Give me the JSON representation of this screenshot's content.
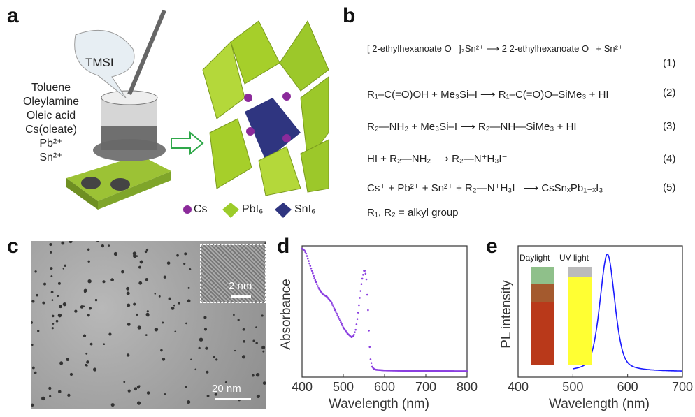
{
  "panels": {
    "a": "a",
    "b": "b",
    "c": "c",
    "d": "d",
    "e": "e"
  },
  "a": {
    "bubble": "TMSI",
    "reagents": [
      "Toluene",
      "Oleylamine",
      "Oleic acid",
      "Cs(oleate)",
      "Pb²⁺",
      "Sn²⁺"
    ],
    "legend": [
      "Cs",
      "PbI₆",
      "SnI₆"
    ],
    "colors": {
      "cs": "#8b2a9a",
      "pbi6": "#9ccc2a",
      "sni6": "#2f3580",
      "arrow": "#2fa84a"
    }
  },
  "b": {
    "equations": [
      {
        "text": "[ 2-ethylhexanoate O⁻ ]₂Sn²⁺ ⟶ 2 2-ethylhexanoate O⁻ + Sn²⁺",
        "number": "(1)"
      },
      {
        "text": "R₁–C(=O)OH + Me₃Si–I ⟶ R₁–C(=O)O–SiMe₃ + HI",
        "number": "(2)"
      },
      {
        "text": "R₂—NH₂ + Me₃Si–I ⟶ R₂—NH—SiMe₃ + HI",
        "number": "(3)"
      },
      {
        "text": "HI + R₂—NH₂ ⟶ R₂—N⁺H₃I⁻",
        "number": "(4)"
      },
      {
        "text": "Cs⁺ + Pb²⁺ + Sn²⁺ + R₂—N⁺H₃I⁻ ⟶ CsSnₓPb₁₋ₓI₃",
        "number": "(5)"
      }
    ],
    "note": "R₁, R₂ = alkyl group"
  },
  "c": {
    "scale_main": "20 nm",
    "scale_inset": "2 nm"
  },
  "chart_data": [
    {
      "type": "scatter",
      "panel": "d",
      "xlabel": "Wavelength (nm)",
      "ylabel": "Absorbance",
      "xlim": [
        400,
        800
      ],
      "xticks": [
        "400",
        "500",
        "600",
        "700",
        "800"
      ],
      "color": "#8a3ee0",
      "x": [
        400,
        405,
        410,
        420,
        430,
        440,
        450,
        460,
        470,
        480,
        490,
        500,
        510,
        520,
        525,
        530,
        535,
        540,
        545,
        550,
        553,
        556,
        560,
        563,
        566,
        570,
        575,
        580,
        600,
        650,
        700,
        750,
        800
      ],
      "y": [
        1.0,
        0.99,
        0.96,
        0.86,
        0.76,
        0.68,
        0.63,
        0.61,
        0.57,
        0.5,
        0.43,
        0.36,
        0.31,
        0.28,
        0.29,
        0.34,
        0.45,
        0.6,
        0.74,
        0.82,
        0.82,
        0.75,
        0.5,
        0.25,
        0.1,
        0.04,
        0.02,
        0.015,
        0.01,
        0.007,
        0.005,
        0.004,
        0.003
      ]
    },
    {
      "type": "line",
      "panel": "e",
      "xlabel": "Wavelength (nm)",
      "ylabel": "PL intensity",
      "xlim": [
        400,
        700
      ],
      "xticks": [
        "400",
        "500",
        "600",
        "700"
      ],
      "color": "#1a1aff",
      "peak": 563,
      "fwhm": 32,
      "x_range": [
        500,
        700
      ],
      "photo_labels": [
        "Daylight",
        "UV light"
      ]
    }
  ]
}
